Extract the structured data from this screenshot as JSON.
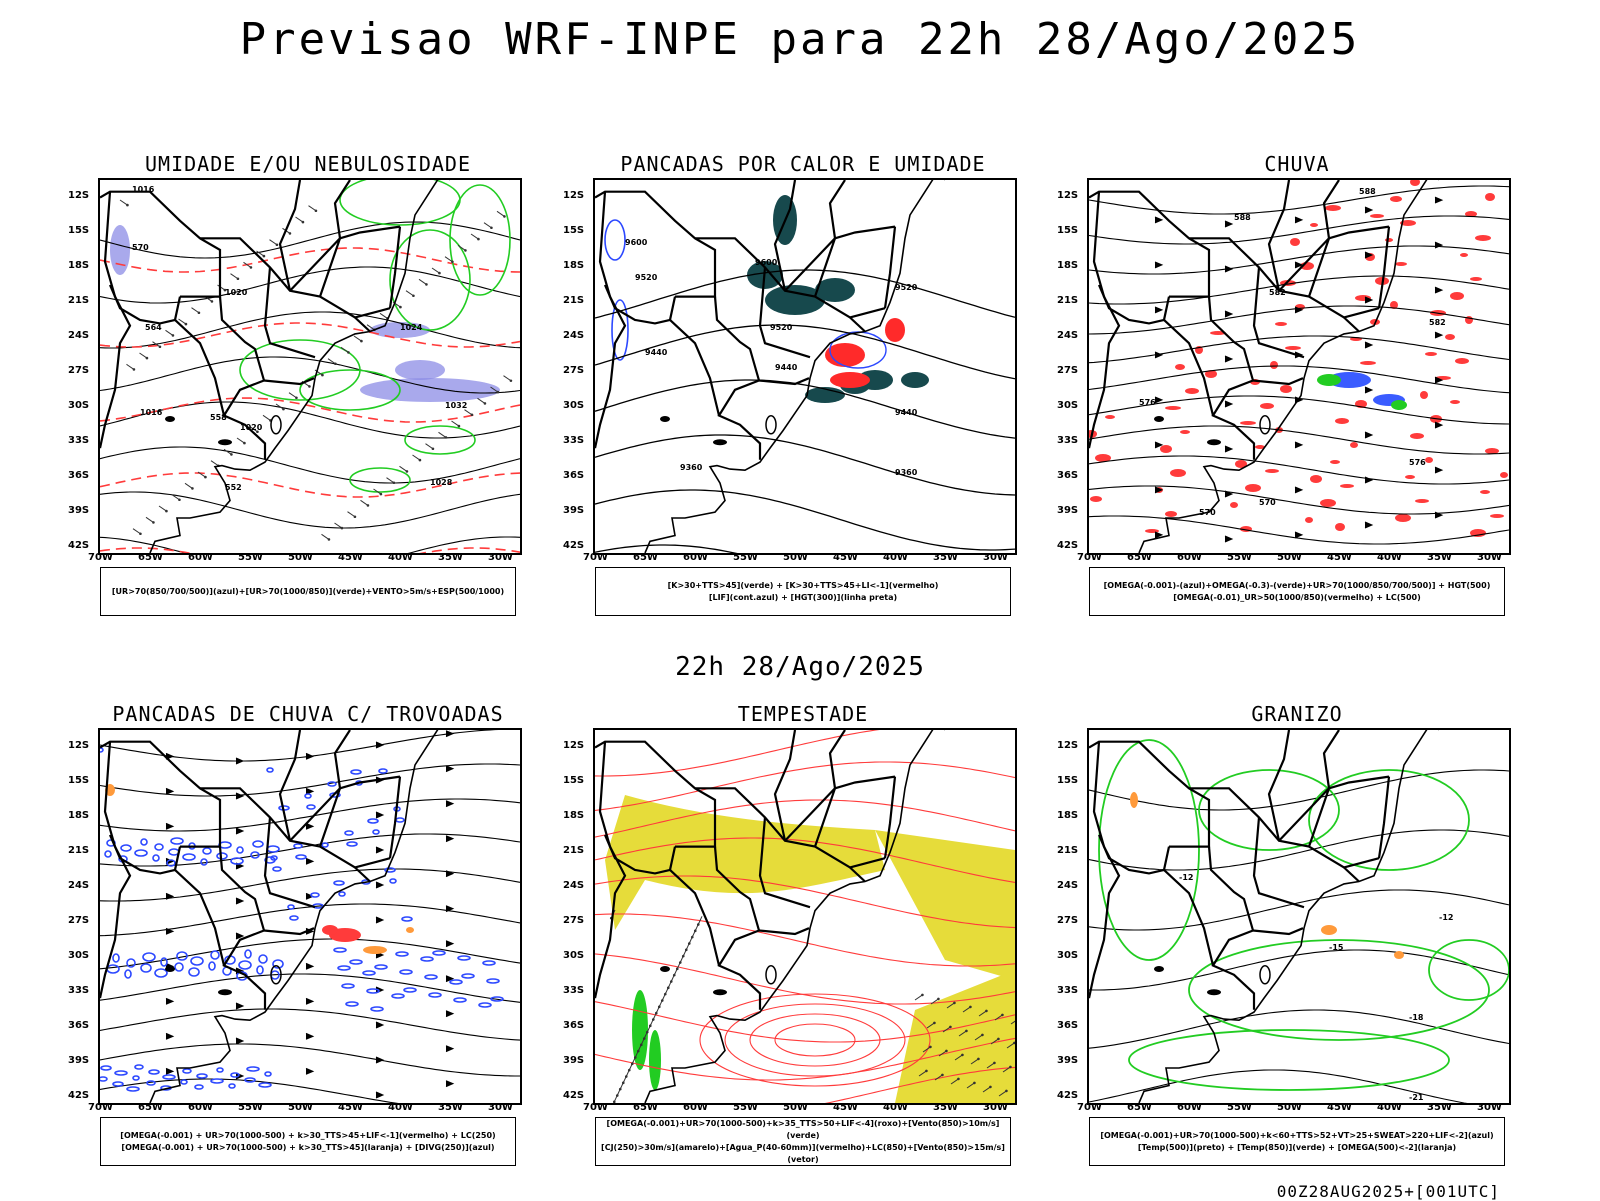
{
  "title": "Previsao WRF-INPE  para 22h 28/Ago/2025",
  "subtitle": "22h 28/Ago/2025",
  "footer": "00Z28AUG2025+[001UTC]",
  "lat_labels": [
    "12S",
    "15S",
    "18S",
    "21S",
    "24S",
    "27S",
    "30S",
    "33S",
    "36S",
    "39S",
    "42S"
  ],
  "lon_labels": [
    "70W",
    "65W",
    "60W",
    "55W",
    "50W",
    "45W",
    "40W",
    "35W",
    "30W"
  ],
  "panels": [
    {
      "title": "UMIDADE E/OU NEBULOSIDADE",
      "legend": [
        "[UR>70(850/700/500)](azul)+[UR>70(1000/850)](verde)+VENTO>5m/s+ESP(500/1000)"
      ],
      "contour_labels": [
        "1016",
        "1020",
        "1024",
        "1028",
        "1032",
        "570",
        "564",
        "558",
        "552"
      ]
    },
    {
      "title": "PANCADAS POR CALOR E UMIDADE",
      "legend": [
        "[K>30+TTS>45](verde) + [K>30+TTS>45+LI<-1](vermelho)",
        "[LIF](cont.azul) + [HGT(300)](linha preta)"
      ],
      "contour_labels": [
        "9600",
        "9520",
        "9440",
        "9360"
      ]
    },
    {
      "title": "CHUVA",
      "legend": [
        "[OMEGA(-0.001)-(azul)+OMEGA(-0.3)-(verde)+UR>70(1000/850/700/500)] + HGT(500)",
        "[OMEGA(-0.01)_UR>50(1000/850)(vermelho) + LC(500)"
      ],
      "contour_labels": [
        "588",
        "582",
        "576",
        "570"
      ]
    },
    {
      "title": "PANCADAS DE CHUVA C/ TROVOADAS",
      "legend": [
        "[OMEGA(-0.001) + UR>70(1000-500) + k>30_TTS>45+LIF<-1](vermelho) + LC(250)",
        "[OMEGA(-0.001) + UR>70(1000-500) + k>30_TTS>45](laranja) + [DIVG(250)](azul)"
      ],
      "contour_labels": []
    },
    {
      "title": "TEMPESTADE",
      "legend": [
        "[OMEGA(-0.001)+UR>70(1000-500)+k>35_TTS>50+LIF<-4](roxo)+[Vento(850)>10m/s](verde)",
        "[CJ(250)>30m/s](amarelo)+[Agua_P(40-60mm)](vermelho)+LC(850)+[Vento(850)>15m/s](vetor)"
      ],
      "contour_labels": []
    },
    {
      "title": "GRANIZO",
      "legend": [
        "[OMEGA(-0.001)+UR>70(1000-500)+k<60+TTS>52+VT>25+SWEAT>220+LIF<-2](azul)",
        "[Temp(500)](preto) + [Temp(850)](verde) + [OMEGA(500)<-2](laranja)"
      ],
      "contour_labels": [
        "-12",
        "-15",
        "-18",
        "-21"
      ]
    }
  ]
}
